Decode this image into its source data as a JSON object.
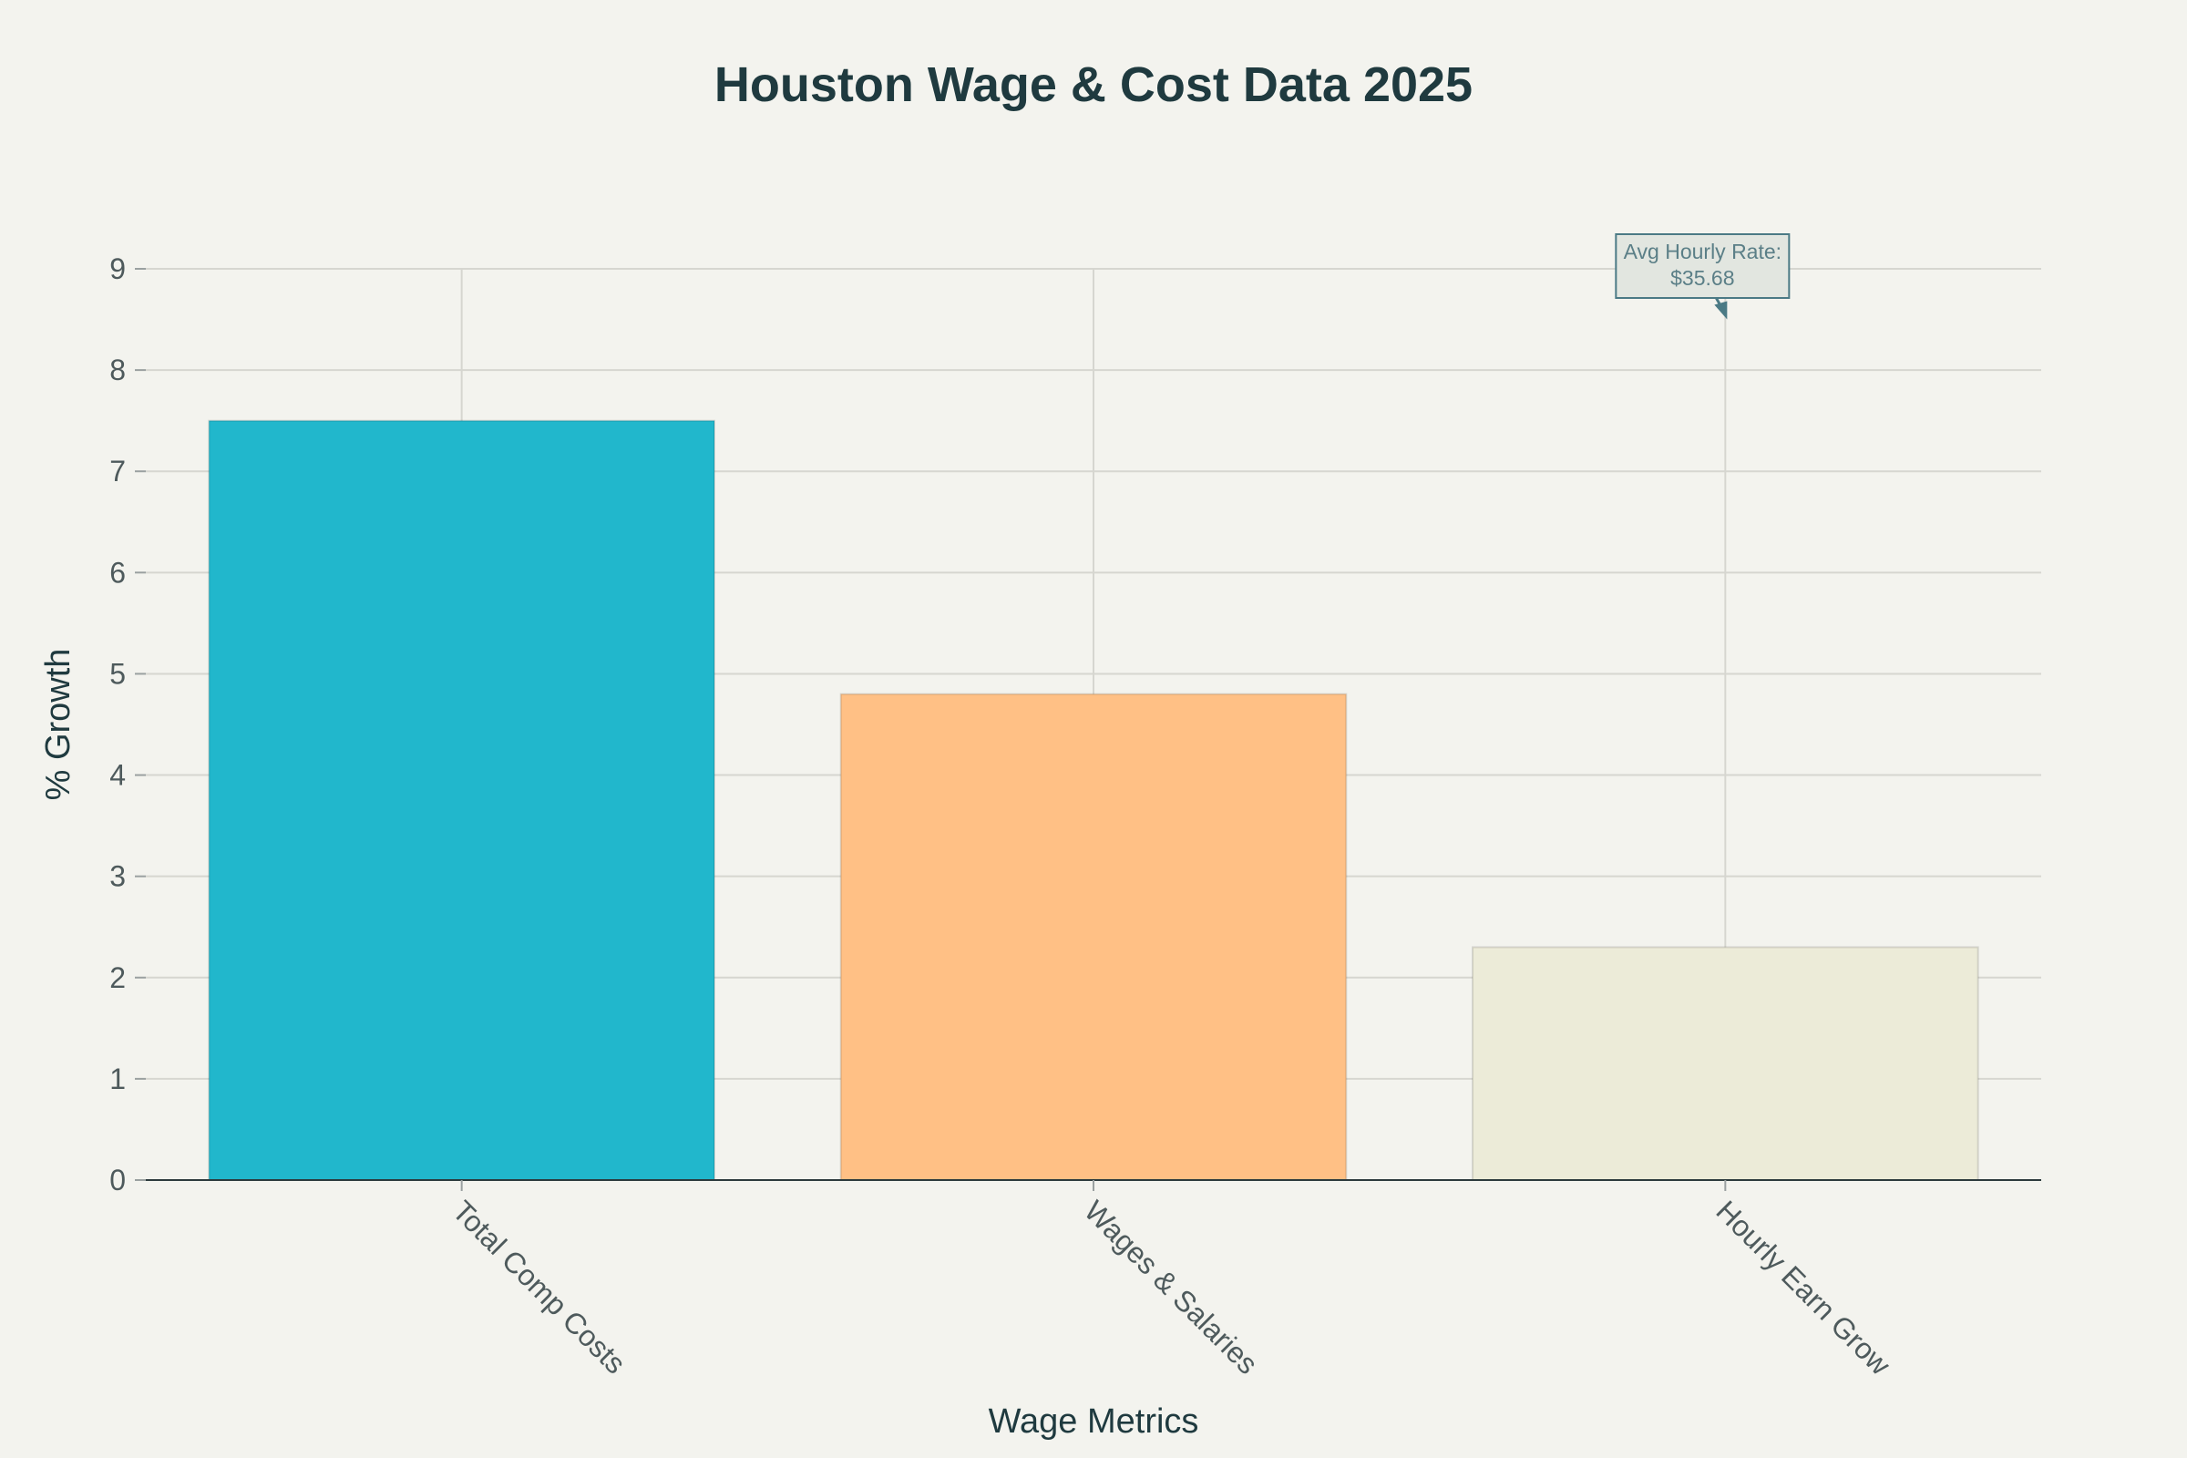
{
  "chart_data": {
    "type": "bar",
    "title": "Houston Wage & Cost Data 2025",
    "xlabel": "Wage Metrics",
    "ylabel": "% Growth",
    "categories": [
      "Total Comp Costs",
      "Wages & Salaries",
      "Hourly Earn Grow"
    ],
    "values": [
      7.5,
      4.8,
      2.3
    ],
    "colors": [
      "#21b7cc",
      "#ffc085",
      "#ecebd8"
    ],
    "ylim": [
      0,
      9
    ],
    "yticks": [
      0,
      1,
      2,
      3,
      4,
      5,
      6,
      7,
      8,
      9
    ],
    "grid": true,
    "legend": "none",
    "annotation": {
      "lines": [
        "Avg Hourly Rate:",
        "$35.68"
      ],
      "category": "Hourly Earn Grow",
      "y": 8.5
    }
  }
}
